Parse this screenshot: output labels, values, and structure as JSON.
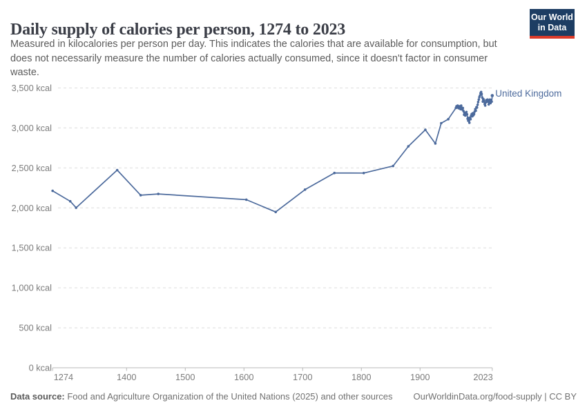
{
  "header": {
    "title": "Daily supply of calories per person, 1274 to 2023",
    "subtitle_lines": [
      "Measured in kilocalories per person per day. This indicates the calories that are available for consumption, but",
      "does not necessarily measure the number of calories actually consumed, since it doesn't factor in consumer",
      "waste."
    ],
    "logo": {
      "line1": "Our World",
      "line2": "in Data"
    }
  },
  "footer": {
    "source_label": "Data source:",
    "source_text": " Food and Agriculture Organization of the United Nations (2025) and other sources",
    "credit": "OurWorldinData.org/food-supply | CC BY"
  },
  "chart_data": {
    "type": "line",
    "title": "Daily supply of calories per person, 1274 to 2023",
    "xlabel": "",
    "ylabel": "kcal",
    "xlim": [
      1274,
      2023
    ],
    "ylim": [
      0,
      3500
    ],
    "grid": "horizontal-dashed",
    "legend_position": "end-of-line",
    "x_ticks": [
      {
        "value": 1274,
        "label": "1274"
      },
      {
        "value": 1400,
        "label": "1400"
      },
      {
        "value": 1500,
        "label": "1500"
      },
      {
        "value": 1600,
        "label": "1600"
      },
      {
        "value": 1700,
        "label": "1700"
      },
      {
        "value": 1800,
        "label": "1800"
      },
      {
        "value": 1900,
        "label": "1900"
      },
      {
        "value": 2023,
        "label": "2023"
      }
    ],
    "y_ticks": [
      {
        "value": 0,
        "label": "0 kcal"
      },
      {
        "value": 500,
        "label": "500 kcal"
      },
      {
        "value": 1000,
        "label": "1,000 kcal"
      },
      {
        "value": 1500,
        "label": "1,500 kcal"
      },
      {
        "value": 2000,
        "label": "2,000 kcal"
      },
      {
        "value": 2500,
        "label": "2,500 kcal"
      },
      {
        "value": 3000,
        "label": "3,000 kcal"
      },
      {
        "value": 3500,
        "label": "3,500 kcal"
      }
    ],
    "series": [
      {
        "name": "United Kingdom",
        "color": "#4c6a9c",
        "points": [
          [
            1274,
            2213
          ],
          [
            1304,
            2083
          ],
          [
            1314,
            2002
          ],
          [
            1384,
            2473
          ],
          [
            1424,
            2159
          ],
          [
            1454,
            2174
          ],
          [
            1604,
            2103
          ],
          [
            1654,
            1949
          ],
          [
            1704,
            2229
          ],
          [
            1754,
            2437
          ],
          [
            1804,
            2436
          ],
          [
            1854,
            2524
          ],
          [
            1880,
            2770
          ],
          [
            1909,
            2977
          ],
          [
            1926,
            2805
          ],
          [
            1936,
            3060
          ],
          [
            1948,
            3110
          ],
          [
            1961,
            3250
          ],
          [
            1962,
            3270
          ],
          [
            1963,
            3255
          ],
          [
            1964,
            3280
          ],
          [
            1965,
            3265
          ],
          [
            1966,
            3245
          ],
          [
            1967,
            3270
          ],
          [
            1968,
            3250
          ],
          [
            1969,
            3235
          ],
          [
            1970,
            3280
          ],
          [
            1971,
            3255
          ],
          [
            1972,
            3230
          ],
          [
            1973,
            3250
          ],
          [
            1974,
            3210
          ],
          [
            1975,
            3165
          ],
          [
            1976,
            3190
          ],
          [
            1977,
            3155
          ],
          [
            1978,
            3180
          ],
          [
            1979,
            3200
          ],
          [
            1980,
            3170
          ],
          [
            1981,
            3115
          ],
          [
            1982,
            3090
          ],
          [
            1983,
            3125
          ],
          [
            1984,
            3065
          ],
          [
            1985,
            3130
          ],
          [
            1986,
            3110
          ],
          [
            1987,
            3155
          ],
          [
            1988,
            3175
          ],
          [
            1989,
            3145
          ],
          [
            1990,
            3185
          ],
          [
            1991,
            3160
          ],
          [
            1992,
            3175
          ],
          [
            1993,
            3205
          ],
          [
            1994,
            3235
          ],
          [
            1995,
            3215
          ],
          [
            1996,
            3260
          ],
          [
            1997,
            3255
          ],
          [
            1998,
            3290
          ],
          [
            1999,
            3325
          ],
          [
            2000,
            3355
          ],
          [
            2001,
            3385
          ],
          [
            2002,
            3405
          ],
          [
            2003,
            3435
          ],
          [
            2004,
            3450
          ],
          [
            2005,
            3425
          ],
          [
            2006,
            3380
          ],
          [
            2007,
            3330
          ],
          [
            2008,
            3360
          ],
          [
            2009,
            3340
          ],
          [
            2010,
            3300
          ],
          [
            2011,
            3280
          ],
          [
            2012,
            3320
          ],
          [
            2013,
            3350
          ],
          [
            2014,
            3330
          ],
          [
            2015,
            3355
          ],
          [
            2016,
            3330
          ],
          [
            2017,
            3295
          ],
          [
            2018,
            3340
          ],
          [
            2019,
            3355
          ],
          [
            2020,
            3310
          ],
          [
            2021,
            3350
          ],
          [
            2022,
            3330
          ],
          [
            2023,
            3405
          ]
        ]
      }
    ]
  }
}
